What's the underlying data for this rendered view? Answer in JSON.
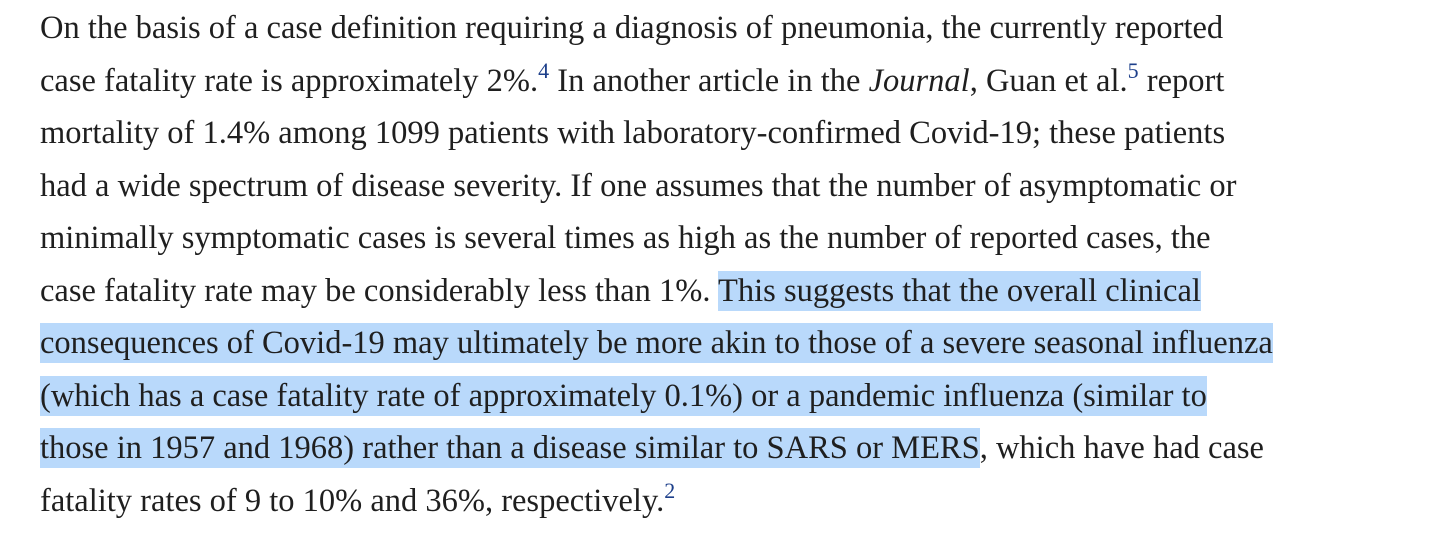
{
  "paragraph": {
    "l1": "On the basis of a case definition requiring a diagnosis of pneumonia, the currently reported",
    "l2a": "case fatality rate is approximately 2%.",
    "ref4": "4",
    "l2b": " In another article in the ",
    "journal": "Journal",
    "l2c": ", Guan et al.",
    "ref5": "5",
    "l2d": " report",
    "l3": "mortality of 1.4% among 1099 patients with laboratory-confirmed Covid-19; these patients",
    "l4": "had a wide spectrum of disease severity. If one assumes that the number of asymptomatic or",
    "l5": "minimally symptomatic cases is several times as high as the number of reported cases, the",
    "l6a": "case fatality rate may be considerably less than 1%. ",
    "l6b": "This suggests that the overall clinical",
    "l7": "consequences of Covid-19 may ultimately be more akin to those of a severe seasonal influenza",
    "l8": "(which has a case fatality rate of approximately 0.1%) or a pandemic influenza (similar to",
    "l9a": "those in 1957 and 1968) rather than a disease similar to SARS or MERS",
    "l9b": ", which have had case",
    "l10": "fatality rates of 9 to 10% and 36%, respectively.",
    "ref2": "2"
  },
  "colors": {
    "highlight": "#b9d9fb",
    "text": "#1f1f1f",
    "reference": "#1d3f8a"
  }
}
